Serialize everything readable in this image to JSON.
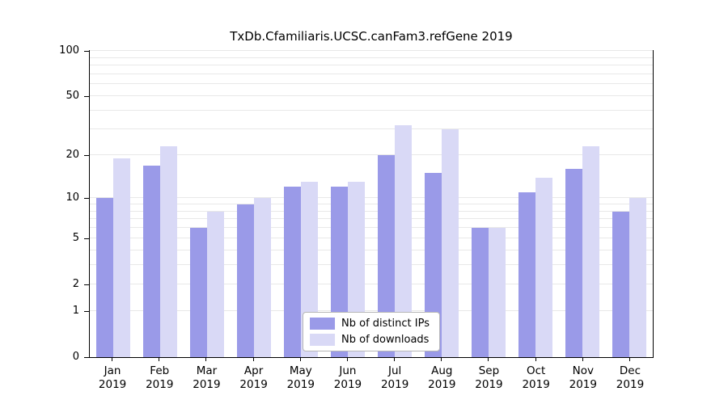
{
  "title": "TxDb.Cfamiliaris.UCSC.canFam3.refGene 2019",
  "chart_data": {
    "type": "bar",
    "title": "TxDb.Cfamiliaris.UCSC.canFam3.refGene 2019",
    "categories": [
      "Jan",
      "Feb",
      "Mar",
      "Apr",
      "May",
      "Jun",
      "Jul",
      "Aug",
      "Sep",
      "Oct",
      "Nov",
      "Dec"
    ],
    "year": "2019",
    "series": [
      {
        "name": "Nb of distinct IPs",
        "color": "#9a9ae8",
        "values": [
          10,
          17,
          6,
          9,
          12,
          12,
          20,
          15,
          6,
          11,
          16,
          8
        ]
      },
      {
        "name": "Nb of downloads",
        "color": "#d9d9f6",
        "values": [
          19,
          23,
          8,
          10,
          13,
          13,
          32,
          30,
          6,
          14,
          23,
          10
        ]
      }
    ],
    "xlabel": "",
    "ylabel": "",
    "y_ticks": [
      0,
      1,
      2,
      5,
      10,
      20,
      50,
      100
    ],
    "gridline_values": [
      1,
      2,
      3,
      4,
      5,
      6,
      7,
      8,
      9,
      10,
      20,
      30,
      40,
      50,
      60,
      70,
      80,
      90,
      100
    ],
    "ylim": [
      0,
      100
    ],
    "scale": "log1p",
    "grid": true,
    "legend_position": "bottom-center"
  }
}
